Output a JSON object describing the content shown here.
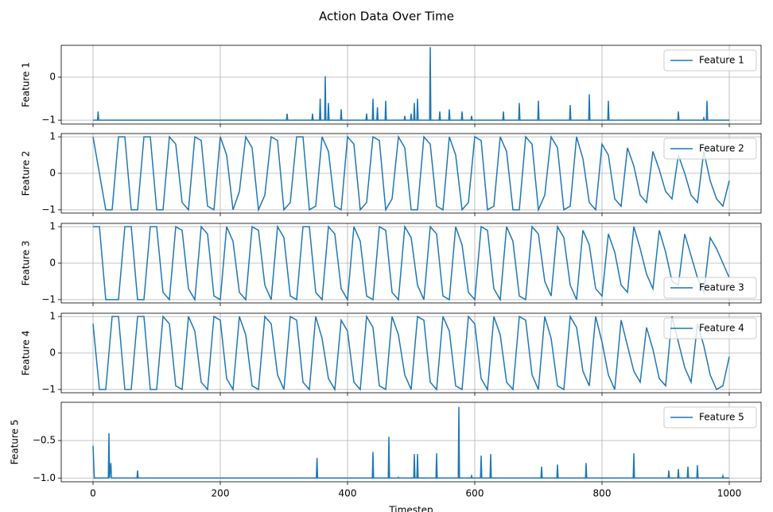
{
  "chart_data": [
    {
      "type": "line",
      "title": "Action Data Over Time",
      "ylabel": "Feature 1",
      "legend": "upper right",
      "grid": true,
      "xlim": [
        -50,
        1050
      ],
      "xticks": [
        0,
        200,
        400,
        600,
        800,
        1000
      ],
      "ylim": [
        -1.09,
        0.74
      ],
      "yticks": [
        {
          "value": -1,
          "label": "−1"
        },
        0
      ],
      "x": [
        0,
        7,
        8,
        9,
        304,
        305,
        306,
        344,
        345,
        346,
        356,
        357,
        358,
        364,
        365,
        366,
        369,
        370,
        371,
        389,
        390,
        391,
        429,
        430,
        431,
        439,
        440,
        441,
        446,
        447,
        448,
        459,
        460,
        461,
        489,
        490,
        491,
        499,
        500,
        501,
        504,
        505,
        506,
        509,
        510,
        511,
        529,
        530,
        531,
        544,
        545,
        546,
        559,
        560,
        561,
        579,
        580,
        581,
        594,
        595,
        596,
        644,
        645,
        646,
        669,
        670,
        671,
        699,
        700,
        701,
        749,
        750,
        751,
        779,
        780,
        781,
        809,
        810,
        811,
        919,
        920,
        921,
        959,
        960,
        961,
        964,
        965,
        966,
        1000
      ],
      "series": [
        {
          "name": "Feature 1",
          "color": "#1f77b4",
          "values": [
            -1,
            -1,
            -0.8,
            -1,
            -1,
            -0.85,
            -1,
            -1,
            -0.85,
            -1,
            -1,
            -0.5,
            -1,
            -1,
            0.02,
            -1,
            -1,
            -0.6,
            -1,
            -1,
            -0.75,
            -1,
            -1,
            -0.85,
            -1,
            -1,
            -0.5,
            -1,
            -1,
            -0.7,
            -1,
            -1,
            -0.55,
            -1,
            -1,
            -0.9,
            -1,
            -1,
            -0.85,
            -1,
            -1,
            -0.6,
            -1,
            -1,
            -0.5,
            -1,
            -1,
            0.7,
            -1,
            -1,
            -0.8,
            -1,
            -1,
            -0.75,
            -1,
            -1,
            -0.8,
            -1,
            -1,
            -0.9,
            -1,
            -1,
            -0.8,
            -1,
            -1,
            -0.6,
            -1,
            -1,
            -0.55,
            -1,
            -1,
            -0.65,
            -1,
            -1,
            -0.4,
            -1,
            -1,
            -0.55,
            -1,
            -1,
            -0.8,
            -1,
            -1,
            -0.95,
            -1,
            -1,
            -0.55,
            -1,
            -1
          ]
        }
      ]
    },
    {
      "type": "line",
      "ylabel": "Feature 2",
      "legend": "upper right",
      "grid": true,
      "xlim": [
        -50,
        1050
      ],
      "xticks": [
        0,
        200,
        400,
        600,
        800,
        1000
      ],
      "ylim": [
        -1.09,
        1.09
      ],
      "yticks": [
        {
          "value": -1,
          "label": "−1"
        },
        0,
        1
      ],
      "x": [
        0,
        10,
        20,
        30,
        40,
        50,
        60,
        70,
        80,
        90,
        100,
        110,
        120,
        130,
        140,
        150,
        160,
        170,
        180,
        190,
        200,
        210,
        220,
        230,
        240,
        250,
        260,
        270,
        280,
        290,
        300,
        310,
        320,
        330,
        340,
        350,
        360,
        370,
        380,
        390,
        400,
        410,
        420,
        430,
        440,
        450,
        460,
        470,
        480,
        490,
        500,
        510,
        520,
        530,
        540,
        550,
        560,
        570,
        580,
        590,
        600,
        610,
        620,
        630,
        640,
        650,
        660,
        670,
        680,
        690,
        700,
        710,
        720,
        730,
        740,
        750,
        760,
        770,
        780,
        790,
        800,
        810,
        820,
        830,
        840,
        850,
        860,
        870,
        880,
        890,
        900,
        910,
        920,
        930,
        940,
        950,
        960,
        970,
        980,
        990,
        1000
      ],
      "series": [
        {
          "name": "Feature 2",
          "color": "#1f77b4",
          "values": [
            1,
            0,
            -1,
            -1,
            1,
            1,
            -1,
            -1,
            1,
            1,
            -1,
            -1,
            1,
            0.8,
            -0.8,
            -1,
            1,
            0.9,
            -0.9,
            -1,
            1,
            0.5,
            -1,
            -0.5,
            1,
            0.7,
            -1,
            -0.6,
            1,
            0.9,
            -1,
            -0.8,
            1,
            1,
            -1,
            -0.9,
            1,
            0.6,
            -0.9,
            -1,
            1,
            0.8,
            -1,
            -0.8,
            1,
            0.9,
            -1,
            -0.7,
            1,
            0.7,
            -1,
            -1,
            1,
            0.8,
            -0.9,
            -1,
            1,
            0.5,
            -1,
            -0.8,
            1,
            0.9,
            -1,
            -0.9,
            1,
            0.6,
            -1,
            -1,
            1,
            0.8,
            -1,
            -0.6,
            1,
            0.7,
            -1,
            -0.9,
            1,
            0.4,
            -0.8,
            -1,
            0.8,
            0.5,
            -0.7,
            -0.9,
            0.7,
            0.2,
            -0.6,
            -0.8,
            0.6,
            0.1,
            -0.5,
            -0.7,
            0.5,
            0,
            -0.6,
            -0.8,
            0.6,
            -0.2,
            -0.7,
            -0.9,
            -0.2
          ]
        }
      ]
    },
    {
      "type": "line",
      "ylabel": "Feature 3",
      "legend": "lower right",
      "grid": true,
      "xlim": [
        -50,
        1050
      ],
      "xticks": [
        0,
        200,
        400,
        600,
        800,
        1000
      ],
      "ylim": [
        -1.09,
        1.09
      ],
      "yticks": [
        {
          "value": -1,
          "label": "−1"
        },
        0,
        1
      ],
      "x": [
        0,
        10,
        20,
        30,
        40,
        50,
        60,
        70,
        80,
        90,
        100,
        110,
        120,
        130,
        140,
        150,
        160,
        170,
        180,
        190,
        200,
        210,
        220,
        230,
        240,
        250,
        260,
        270,
        280,
        290,
        300,
        310,
        320,
        330,
        340,
        350,
        360,
        370,
        380,
        390,
        400,
        410,
        420,
        430,
        440,
        450,
        460,
        470,
        480,
        490,
        500,
        510,
        520,
        530,
        540,
        550,
        560,
        570,
        580,
        590,
        600,
        610,
        620,
        630,
        640,
        650,
        660,
        670,
        680,
        690,
        700,
        710,
        720,
        730,
        740,
        750,
        760,
        770,
        780,
        790,
        800,
        810,
        820,
        830,
        840,
        850,
        860,
        870,
        880,
        890,
        900,
        910,
        920,
        930,
        940,
        950,
        960,
        970,
        980,
        990,
        1000
      ],
      "series": [
        {
          "name": "Feature 3",
          "color": "#1f77b4",
          "values": [
            1,
            1,
            -1,
            -1,
            -1,
            1,
            1,
            -1,
            -1,
            1,
            1,
            -0.8,
            -1,
            1,
            0.9,
            -0.7,
            -1,
            1,
            0.8,
            -0.9,
            -1,
            1,
            0.6,
            -0.8,
            -1,
            1,
            0.9,
            -0.6,
            -1,
            1,
            0.7,
            -0.9,
            -1,
            1,
            1,
            -0.8,
            -1,
            1,
            0.8,
            -0.7,
            -1,
            1,
            0.6,
            -0.9,
            -1,
            1,
            0.9,
            -0.8,
            -1,
            1,
            0.7,
            -0.6,
            -1,
            1,
            0.8,
            -0.9,
            -1,
            1,
            0.5,
            -0.8,
            -1,
            1,
            0.9,
            -0.7,
            -1,
            1,
            0.6,
            -0.9,
            -1,
            1,
            0.8,
            -0.5,
            -0.9,
            1,
            0.7,
            -0.6,
            -1,
            0.9,
            0.5,
            -0.7,
            -0.9,
            0.8,
            0.3,
            -0.6,
            -0.8,
            1,
            0.4,
            -0.3,
            -0.7,
            0.9,
            0.3,
            -0.5,
            -0.6,
            0.8,
            0.2,
            -0.4,
            -0.8,
            0.7,
            0.4,
            0,
            -0.4
          ]
        }
      ]
    },
    {
      "type": "line",
      "ylabel": "Feature 4",
      "legend": "upper right",
      "grid": true,
      "xlim": [
        -50,
        1050
      ],
      "xticks": [
        0,
        200,
        400,
        600,
        800,
        1000
      ],
      "ylim": [
        -1.09,
        1.09
      ],
      "yticks": [
        {
          "value": -1,
          "label": "−1"
        },
        0,
        1
      ],
      "x": [
        0,
        10,
        20,
        30,
        40,
        50,
        60,
        70,
        80,
        90,
        100,
        110,
        120,
        130,
        140,
        150,
        160,
        170,
        180,
        190,
        200,
        210,
        220,
        230,
        240,
        250,
        260,
        270,
        280,
        290,
        300,
        310,
        320,
        330,
        340,
        350,
        360,
        370,
        380,
        390,
        400,
        410,
        420,
        430,
        440,
        450,
        460,
        470,
        480,
        490,
        500,
        510,
        520,
        530,
        540,
        550,
        560,
        570,
        580,
        590,
        600,
        610,
        620,
        630,
        640,
        650,
        660,
        670,
        680,
        690,
        700,
        710,
        720,
        730,
        740,
        750,
        760,
        770,
        780,
        790,
        800,
        810,
        820,
        830,
        840,
        850,
        860,
        870,
        880,
        890,
        900,
        910,
        920,
        930,
        940,
        950,
        960,
        970,
        980,
        990,
        1000
      ],
      "series": [
        {
          "name": "Feature 4",
          "color": "#1f77b4",
          "values": [
            0.8,
            -1,
            -1,
            1,
            1,
            -1,
            -1,
            1,
            1,
            -1,
            -1,
            1,
            0.8,
            -0.9,
            -1,
            1,
            0.6,
            -0.8,
            -1,
            1,
            0.9,
            -0.7,
            -1,
            1,
            0.5,
            -0.9,
            -1,
            1,
            0.8,
            -0.6,
            -1,
            1,
            0.9,
            -0.8,
            -1,
            1,
            0.4,
            -0.7,
            -1,
            0.9,
            0.6,
            -0.8,
            -1,
            1,
            0.7,
            -0.9,
            -1,
            1,
            0.5,
            -0.6,
            -1,
            1,
            0.9,
            -0.8,
            -1,
            1,
            0.6,
            -0.9,
            -1,
            1,
            0.8,
            -0.7,
            -1,
            1,
            0.5,
            -0.8,
            -1,
            1,
            0.9,
            -0.6,
            -1,
            1,
            0.4,
            -0.9,
            -1,
            1,
            0.7,
            -0.5,
            -0.9,
            1,
            0.3,
            -0.6,
            -1,
            0.9,
            0.2,
            -0.5,
            -0.8,
            0.7,
            0.1,
            -0.7,
            -0.9,
            1,
            0.3,
            -0.4,
            -0.8,
            0.8,
            0.2,
            -0.6,
            -1,
            -0.9,
            -0.1
          ]
        }
      ]
    },
    {
      "type": "line",
      "ylabel": "Feature 5",
      "xlabel": "Timestep",
      "legend": "upper right",
      "grid": true,
      "xlim": [
        -50,
        1050
      ],
      "xticks": [
        0,
        200,
        400,
        600,
        800,
        1000
      ],
      "ylim": [
        -1.05,
        0.01
      ],
      "yticks": [
        {
          "value": -1,
          "label": "−1.0"
        },
        {
          "value": -0.5,
          "label": "−0.5"
        }
      ],
      "x": [
        0,
        2,
        24,
        25,
        26,
        28,
        29,
        69,
        70,
        71,
        351,
        352,
        353,
        439,
        440,
        441,
        464,
        465,
        466,
        479,
        480,
        481,
        504,
        505,
        506,
        509,
        510,
        511,
        539,
        540,
        541,
        574,
        575,
        576,
        594,
        595,
        596,
        609,
        610,
        611,
        624,
        625,
        626,
        704,
        705,
        706,
        729,
        730,
        731,
        774,
        775,
        776,
        849,
        850,
        851,
        904,
        905,
        906,
        919,
        920,
        921,
        934,
        935,
        936,
        949,
        950,
        951,
        989,
        990,
        991,
        1000
      ],
      "series": [
        {
          "name": "Feature 5",
          "color": "#1f77b4",
          "values": [
            -0.57,
            -1,
            -1,
            -0.4,
            -1,
            -0.8,
            -1,
            -1,
            -0.9,
            -1,
            -1,
            -0.73,
            -1,
            -1,
            -0.65,
            -1,
            -1,
            -0.45,
            -1,
            -1,
            -0.99,
            -1,
            -1,
            -0.68,
            -1,
            -1,
            -0.68,
            -1,
            -1,
            -0.67,
            -1,
            -1,
            -0.05,
            -1,
            -1,
            -0.97,
            -1,
            -1,
            -0.7,
            -1,
            -1,
            -0.68,
            -1,
            -1,
            -0.85,
            -1,
            -1,
            -0.82,
            -1,
            -1,
            -0.8,
            -1,
            -1,
            -0.67,
            -1,
            -1,
            -0.9,
            -1,
            -1,
            -0.88,
            -1,
            -1,
            -0.85,
            -1,
            -1,
            -0.83,
            -1,
            -1,
            -0.97,
            -1,
            -1
          ]
        }
      ]
    }
  ]
}
